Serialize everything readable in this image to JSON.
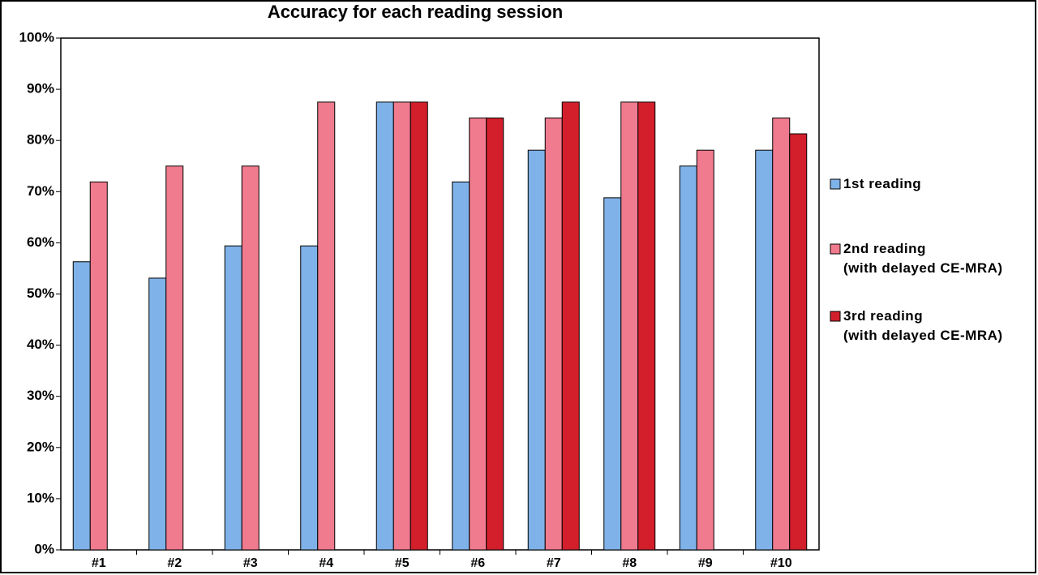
{
  "chart_data": {
    "type": "bar",
    "title": "Accuracy for each reading session",
    "categories": [
      "#1",
      "#2",
      "#3",
      "#4",
      "#5",
      "#6",
      "#7",
      "#8",
      "#9",
      "#10"
    ],
    "series": [
      {
        "name": "1st reading",
        "color": "#7fb2e8",
        "values": [
          56.3,
          53.1,
          59.4,
          59.4,
          87.5,
          71.9,
          78.1,
          68.8,
          75,
          78.1
        ]
      },
      {
        "name": "2nd reading\n(with delayed CE-MRA)",
        "color": "#f07a8e",
        "values": [
          71.9,
          75,
          75,
          87.5,
          87.5,
          84.4,
          84.4,
          87.5,
          78.1,
          84.4
        ]
      },
      {
        "name": "3rd reading\n(with delayed CE-MRA)",
        "color": "#d21f2b",
        "values": [
          null,
          null,
          null,
          null,
          87.5,
          84.4,
          87.5,
          87.5,
          null,
          81.3
        ]
      }
    ],
    "ylim": [
      0,
      100
    ],
    "yticks": [
      {
        "value": 0,
        "label": "0%"
      },
      {
        "value": 10,
        "label": "10%"
      },
      {
        "value": 20,
        "label": "20%"
      },
      {
        "value": 30,
        "label": "30%"
      },
      {
        "value": 40,
        "label": "40%"
      },
      {
        "value": 50,
        "label": "50%"
      },
      {
        "value": 60,
        "label": "60%"
      },
      {
        "value": 70,
        "label": "70%"
      },
      {
        "value": 80,
        "label": "80%"
      },
      {
        "value": 90,
        "label": "90%"
      },
      {
        "value": 100,
        "label": "100%"
      }
    ],
    "legend": "right"
  }
}
